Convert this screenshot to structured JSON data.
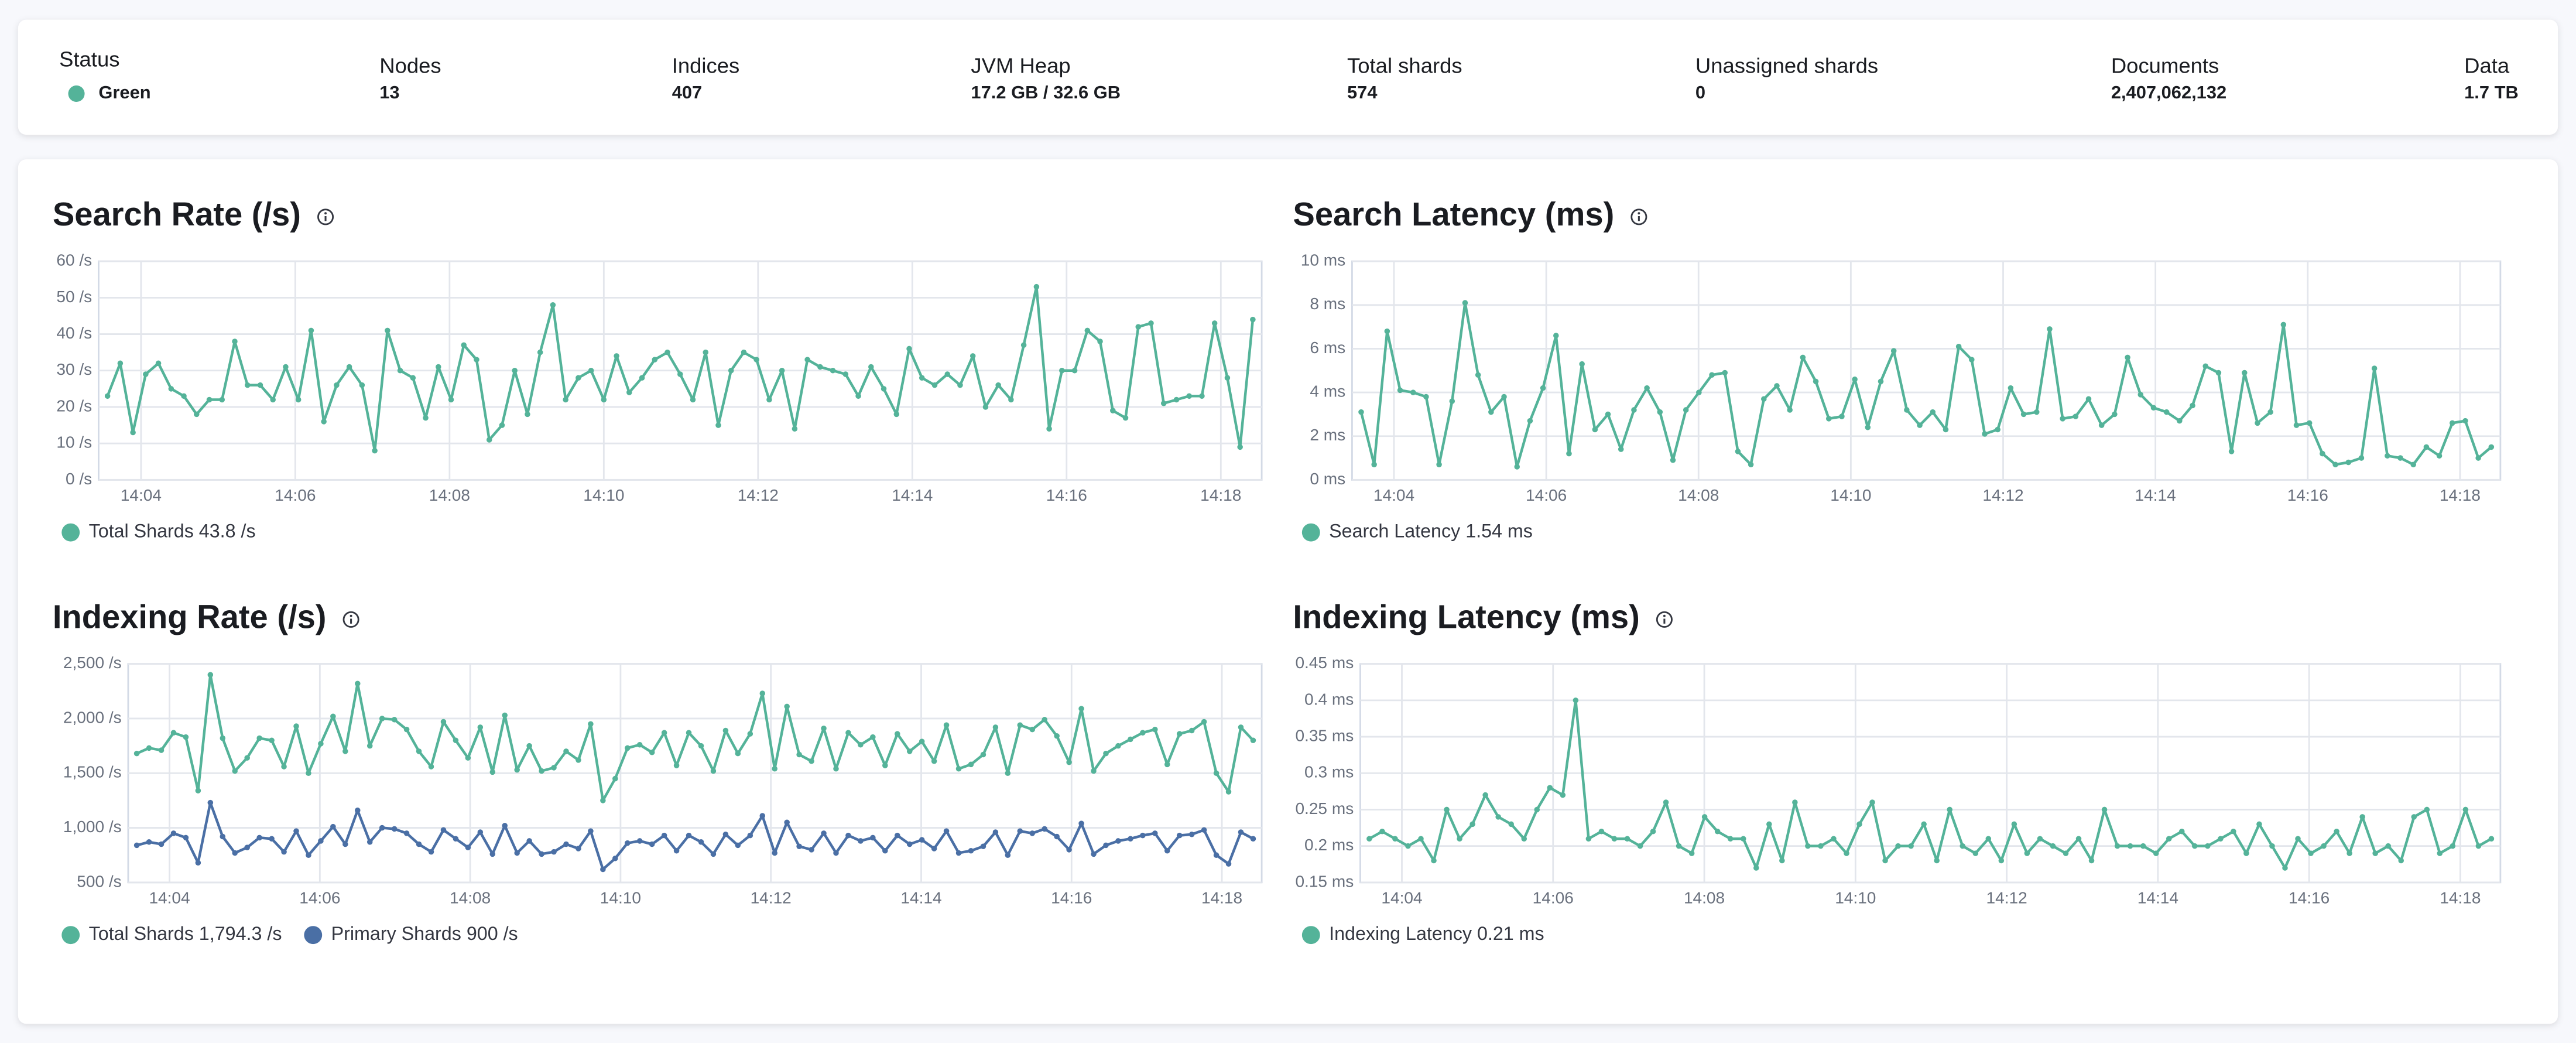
{
  "summary": {
    "items": [
      {
        "label": "Status",
        "value": "Green"
      },
      {
        "label": "Nodes",
        "value": "13"
      },
      {
        "label": "Indices",
        "value": "407"
      },
      {
        "label": "JVM Heap",
        "value": "17.2 GB / 32.6 GB"
      },
      {
        "label": "Total shards",
        "value": "574"
      },
      {
        "label": "Unassigned shards",
        "value": "0"
      },
      {
        "label": "Documents",
        "value": "2,407,062,132"
      },
      {
        "label": "Data",
        "value": "1.7 TB"
      }
    ]
  },
  "chart_data": [
    {
      "type": "line",
      "title": "Search Rate (/s)",
      "grid": true,
      "xlim": [
        843.45,
        858.53
      ],
      "xticks": [
        {
          "value": 844,
          "label": "14:04"
        },
        {
          "value": 846,
          "label": "14:06"
        },
        {
          "value": 848,
          "label": "14:08"
        },
        {
          "value": 850,
          "label": "14:10"
        },
        {
          "value": 852,
          "label": "14:12"
        },
        {
          "value": 854,
          "label": "14:14"
        },
        {
          "value": 856,
          "label": "14:16"
        },
        {
          "value": 858,
          "label": "14:18"
        }
      ],
      "ylim": [
        0,
        60
      ],
      "yticks": [
        {
          "value": 0,
          "label": "0 /s"
        },
        {
          "value": 10,
          "label": "10 /s"
        },
        {
          "value": 20,
          "label": "20 /s"
        },
        {
          "value": 30,
          "label": "30 /s"
        },
        {
          "value": 40,
          "label": "40 /s"
        },
        {
          "value": 50,
          "label": "50 /s"
        },
        {
          "value": 60,
          "label": "60 /s"
        }
      ],
      "series": [
        {
          "name": "Total Shards 43.8 /s",
          "color": "#54b399",
          "values": [
            23,
            32,
            13,
            29,
            32,
            25,
            23,
            18,
            22,
            22,
            38,
            26,
            26,
            22,
            31,
            22,
            41,
            16,
            26,
            31,
            26,
            8,
            41,
            30,
            28,
            17,
            31,
            22,
            37,
            33,
            11,
            15,
            30,
            18,
            35,
            48,
            22,
            28,
            30,
            22,
            34,
            24,
            28,
            33,
            35,
            29,
            22,
            35,
            15,
            30,
            35,
            33,
            22,
            30,
            14,
            33,
            31,
            30,
            29,
            23,
            31,
            25,
            18,
            36,
            28,
            26,
            29,
            26,
            34,
            20,
            26,
            22,
            37,
            53,
            14,
            30,
            30,
            41,
            38,
            19,
            17,
            42,
            43,
            21,
            22,
            23,
            23,
            43,
            28,
            9,
            44
          ]
        }
      ]
    },
    {
      "type": "line",
      "title": "Search Latency (ms)",
      "grid": true,
      "xlim": [
        843.45,
        858.53
      ],
      "xticks": [
        {
          "value": 844,
          "label": "14:04"
        },
        {
          "value": 846,
          "label": "14:06"
        },
        {
          "value": 848,
          "label": "14:08"
        },
        {
          "value": 850,
          "label": "14:10"
        },
        {
          "value": 852,
          "label": "14:12"
        },
        {
          "value": 854,
          "label": "14:14"
        },
        {
          "value": 856,
          "label": "14:16"
        },
        {
          "value": 858,
          "label": "14:18"
        }
      ],
      "ylim": [
        0,
        10
      ],
      "yticks": [
        {
          "value": 0,
          "label": "0 ms"
        },
        {
          "value": 2,
          "label": "2 ms"
        },
        {
          "value": 4,
          "label": "4 ms"
        },
        {
          "value": 6,
          "label": "6 ms"
        },
        {
          "value": 8,
          "label": "8 ms"
        },
        {
          "value": 10,
          "label": "10 ms"
        }
      ],
      "series": [
        {
          "name": "Search Latency 1.54 ms",
          "color": "#54b399",
          "values": [
            3.1,
            0.7,
            6.8,
            4.1,
            4.0,
            3.8,
            0.7,
            3.6,
            8.1,
            4.8,
            3.1,
            3.8,
            0.6,
            2.7,
            4.2,
            6.6,
            1.2,
            5.3,
            2.3,
            3.0,
            1.4,
            3.2,
            4.2,
            3.1,
            0.9,
            3.2,
            4.0,
            4.8,
            4.9,
            1.3,
            0.7,
            3.7,
            4.3,
            3.2,
            5.6,
            4.5,
            2.8,
            2.9,
            4.6,
            2.4,
            4.5,
            5.9,
            3.2,
            2.5,
            3.1,
            2.3,
            6.1,
            5.5,
            2.1,
            2.3,
            4.2,
            3.0,
            3.1,
            6.9,
            2.8,
            2.9,
            3.7,
            2.5,
            3.0,
            5.6,
            3.9,
            3.3,
            3.1,
            2.7,
            3.4,
            5.2,
            4.9,
            1.3,
            4.9,
            2.6,
            3.1,
            7.1,
            2.5,
            2.6,
            1.2,
            0.7,
            0.8,
            1.0,
            5.1,
            1.1,
            1.0,
            0.7,
            1.5,
            1.1,
            2.6,
            2.7,
            1.0,
            1.5
          ]
        }
      ]
    },
    {
      "type": "line",
      "title": "Indexing Rate (/s)",
      "grid": true,
      "xlim": [
        843.45,
        858.53
      ],
      "xticks": [
        {
          "value": 844,
          "label": "14:04"
        },
        {
          "value": 846,
          "label": "14:06"
        },
        {
          "value": 848,
          "label": "14:08"
        },
        {
          "value": 850,
          "label": "14:10"
        },
        {
          "value": 852,
          "label": "14:12"
        },
        {
          "value": 854,
          "label": "14:14"
        },
        {
          "value": 856,
          "label": "14:16"
        },
        {
          "value": 858,
          "label": "14:18"
        }
      ],
      "ylim": [
        500,
        2500
      ],
      "yticks": [
        {
          "value": 500,
          "label": "500 /s"
        },
        {
          "value": 1000,
          "label": "1,000 /s"
        },
        {
          "value": 1500,
          "label": "1,500 /s"
        },
        {
          "value": 2000,
          "label": "2,000 /s"
        },
        {
          "value": 2500,
          "label": "2,500 /s"
        }
      ],
      "series": [
        {
          "name": "Total Shards 1,794.3 /s",
          "color": "#54b399",
          "values": [
            1680,
            1730,
            1710,
            1870,
            1830,
            1340,
            2400,
            1820,
            1520,
            1640,
            1820,
            1800,
            1560,
            1930,
            1500,
            1770,
            2020,
            1700,
            2320,
            1750,
            2000,
            1990,
            1900,
            1700,
            1560,
            1970,
            1800,
            1640,
            1920,
            1510,
            2030,
            1530,
            1750,
            1520,
            1550,
            1700,
            1620,
            1950,
            1250,
            1450,
            1730,
            1760,
            1690,
            1870,
            1570,
            1870,
            1750,
            1520,
            1890,
            1680,
            1860,
            2230,
            1540,
            2110,
            1670,
            1610,
            1910,
            1540,
            1870,
            1760,
            1830,
            1570,
            1860,
            1700,
            1790,
            1610,
            1940,
            1540,
            1580,
            1670,
            1920,
            1500,
            1940,
            1900,
            1990,
            1840,
            1600,
            2090,
            1520,
            1680,
            1750,
            1810,
            1870,
            1900,
            1580,
            1860,
            1890,
            1970,
            1500,
            1330,
            1920,
            1800
          ]
        },
        {
          "name": "Primary Shards 900 /s",
          "color": "#4a6fa5",
          "values": [
            840,
            870,
            850,
            950,
            910,
            680,
            1230,
            920,
            770,
            820,
            910,
            900,
            780,
            970,
            750,
            880,
            1010,
            850,
            1160,
            870,
            1000,
            990,
            950,
            850,
            780,
            980,
            900,
            820,
            960,
            760,
            1020,
            770,
            880,
            760,
            780,
            850,
            810,
            970,
            620,
            720,
            860,
            880,
            850,
            930,
            790,
            930,
            870,
            760,
            940,
            840,
            930,
            1110,
            770,
            1050,
            830,
            800,
            950,
            770,
            930,
            880,
            910,
            790,
            930,
            850,
            890,
            810,
            970,
            770,
            790,
            830,
            960,
            750,
            970,
            950,
            990,
            920,
            800,
            1040,
            760,
            840,
            880,
            900,
            930,
            950,
            790,
            930,
            940,
            980,
            750,
            670,
            960,
            900
          ]
        }
      ]
    },
    {
      "type": "line",
      "title": "Indexing Latency (ms)",
      "grid": true,
      "xlim": [
        843.45,
        858.53
      ],
      "xticks": [
        {
          "value": 844,
          "label": "14:04"
        },
        {
          "value": 846,
          "label": "14:06"
        },
        {
          "value": 848,
          "label": "14:08"
        },
        {
          "value": 850,
          "label": "14:10"
        },
        {
          "value": 852,
          "label": "14:12"
        },
        {
          "value": 854,
          "label": "14:14"
        },
        {
          "value": 856,
          "label": "14:16"
        },
        {
          "value": 858,
          "label": "14:18"
        }
      ],
      "ylim": [
        0.15,
        0.45
      ],
      "yticks": [
        {
          "value": 0.15,
          "label": "0.15 ms"
        },
        {
          "value": 0.2,
          "label": "0.2 ms"
        },
        {
          "value": 0.25,
          "label": "0.25 ms"
        },
        {
          "value": 0.3,
          "label": "0.3 ms"
        },
        {
          "value": 0.35,
          "label": "0.35 ms"
        },
        {
          "value": 0.4,
          "label": "0.4 ms"
        },
        {
          "value": 0.45,
          "label": "0.45 ms"
        }
      ],
      "series": [
        {
          "name": "Indexing Latency 0.21 ms",
          "color": "#54b399",
          "values": [
            0.21,
            0.22,
            0.21,
            0.2,
            0.21,
            0.18,
            0.25,
            0.21,
            0.23,
            0.27,
            0.24,
            0.23,
            0.21,
            0.25,
            0.28,
            0.27,
            0.4,
            0.21,
            0.22,
            0.21,
            0.21,
            0.2,
            0.22,
            0.26,
            0.2,
            0.19,
            0.24,
            0.22,
            0.21,
            0.21,
            0.17,
            0.23,
            0.18,
            0.26,
            0.2,
            0.2,
            0.21,
            0.19,
            0.23,
            0.26,
            0.18,
            0.2,
            0.2,
            0.23,
            0.18,
            0.25,
            0.2,
            0.19,
            0.21,
            0.18,
            0.23,
            0.19,
            0.21,
            0.2,
            0.19,
            0.21,
            0.18,
            0.25,
            0.2,
            0.2,
            0.2,
            0.19,
            0.21,
            0.22,
            0.2,
            0.2,
            0.21,
            0.22,
            0.19,
            0.23,
            0.2,
            0.17,
            0.21,
            0.19,
            0.2,
            0.22,
            0.19,
            0.24,
            0.19,
            0.2,
            0.18,
            0.24,
            0.25,
            0.19,
            0.2,
            0.25,
            0.2,
            0.21
          ]
        }
      ]
    }
  ]
}
